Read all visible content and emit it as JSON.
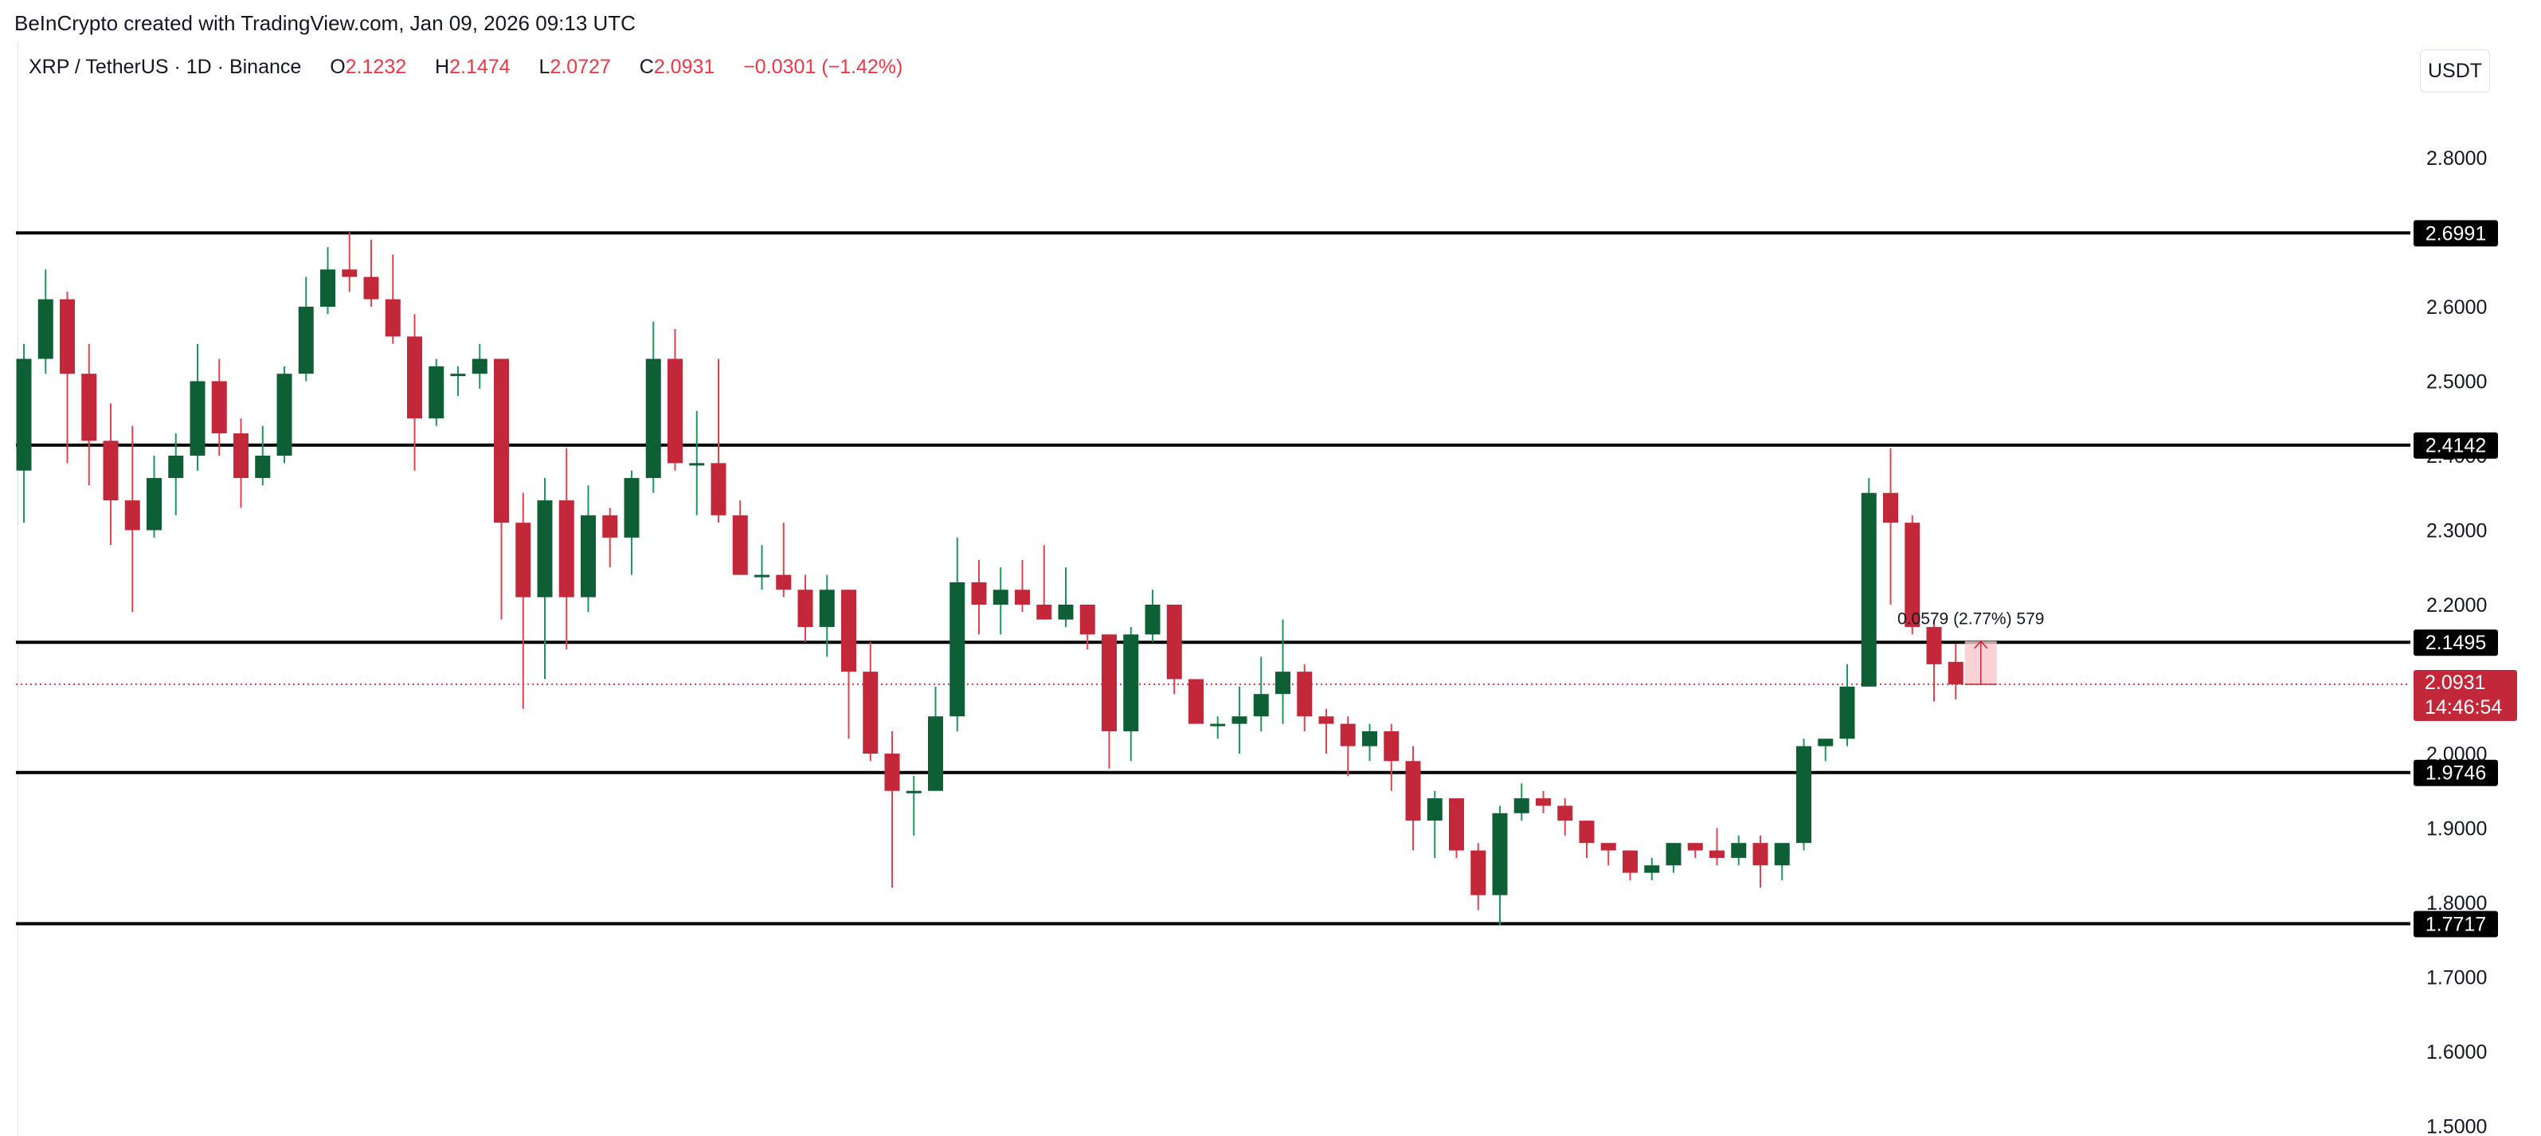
{
  "header": {
    "credit": "BeInCrypto created with TradingView.com, Jan 09, 2026 09:13 UTC"
  },
  "legend": {
    "symbol": "XRP / TetherUS · 1D · Binance",
    "open_label": "O",
    "open": "2.1232",
    "high_label": "H",
    "high": "2.1474",
    "low_label": "L",
    "low": "2.0727",
    "close_label": "C",
    "close": "2.0931",
    "change": "−0.0301 (−1.42%)"
  },
  "currency_button": "USDT",
  "colors": {
    "up": "#0f5f36",
    "down": "#c3283a",
    "level_line": "#000000",
    "price_line": "#e0434f",
    "measure_fill": "#f7c7cc"
  },
  "chart_data": {
    "type": "candlestick",
    "title": "",
    "xlabel": "",
    "ylabel": "",
    "ylim": [
      1.5,
      2.87
    ],
    "y_ticks": [
      "2.8000",
      "2.7000",
      "2.6000",
      "2.5000",
      "2.4000",
      "2.3000",
      "2.2000",
      "2.1000",
      "2.0000",
      "1.9000",
      "1.8000",
      "1.7000",
      "1.6000",
      "1.5000"
    ],
    "y_tick_values": [
      2.8,
      2.7,
      2.6,
      2.5,
      2.4,
      2.3,
      2.2,
      2.1,
      2.0,
      1.9,
      1.8,
      1.7,
      1.6,
      1.5
    ],
    "grid": false,
    "levels": [
      {
        "value": 2.6991,
        "label": "2.6991"
      },
      {
        "value": 2.4142,
        "label": "2.4142"
      },
      {
        "value": 2.1495,
        "label": "2.1495"
      },
      {
        "value": 1.9746,
        "label": "1.9746"
      },
      {
        "value": 1.7717,
        "label": "1.7717"
      }
    ],
    "last_price": {
      "value": 2.0931,
      "label": "2.0931",
      "countdown": "14:46:54"
    },
    "measure_label": "0.0579 (2.77%) 579",
    "candles": [
      {
        "o": 2.38,
        "h": 2.55,
        "l": 2.31,
        "c": 2.53
      },
      {
        "o": 2.53,
        "h": 2.65,
        "l": 2.51,
        "c": 2.61
      },
      {
        "o": 2.61,
        "h": 2.62,
        "l": 2.39,
        "c": 2.51
      },
      {
        "o": 2.51,
        "h": 2.55,
        "l": 2.36,
        "c": 2.42
      },
      {
        "o": 2.42,
        "h": 2.47,
        "l": 2.28,
        "c": 2.34
      },
      {
        "o": 2.34,
        "h": 2.44,
        "l": 2.19,
        "c": 2.3
      },
      {
        "o": 2.3,
        "h": 2.4,
        "l": 2.29,
        "c": 2.37
      },
      {
        "o": 2.37,
        "h": 2.43,
        "l": 2.32,
        "c": 2.4
      },
      {
        "o": 2.4,
        "h": 2.55,
        "l": 2.38,
        "c": 2.5
      },
      {
        "o": 2.5,
        "h": 2.53,
        "l": 2.4,
        "c": 2.43
      },
      {
        "o": 2.43,
        "h": 2.45,
        "l": 2.33,
        "c": 2.37
      },
      {
        "o": 2.37,
        "h": 2.44,
        "l": 2.36,
        "c": 2.4
      },
      {
        "o": 2.4,
        "h": 2.52,
        "l": 2.39,
        "c": 2.51
      },
      {
        "o": 2.51,
        "h": 2.64,
        "l": 2.5,
        "c": 2.6
      },
      {
        "o": 2.6,
        "h": 2.68,
        "l": 2.59,
        "c": 2.65
      },
      {
        "o": 2.65,
        "h": 2.7,
        "l": 2.62,
        "c": 2.64
      },
      {
        "o": 2.64,
        "h": 2.69,
        "l": 2.6,
        "c": 2.61
      },
      {
        "o": 2.61,
        "h": 2.67,
        "l": 2.55,
        "c": 2.56
      },
      {
        "o": 2.56,
        "h": 2.59,
        "l": 2.38,
        "c": 2.45
      },
      {
        "o": 2.45,
        "h": 2.53,
        "l": 2.44,
        "c": 2.52
      },
      {
        "o": 2.51,
        "h": 2.52,
        "l": 2.48,
        "c": 2.51
      },
      {
        "o": 2.51,
        "h": 2.55,
        "l": 2.49,
        "c": 2.53
      },
      {
        "o": 2.53,
        "h": 2.53,
        "l": 2.18,
        "c": 2.31
      },
      {
        "o": 2.31,
        "h": 2.35,
        "l": 2.06,
        "c": 2.21
      },
      {
        "o": 2.21,
        "h": 2.37,
        "l": 2.1,
        "c": 2.34
      },
      {
        "o": 2.34,
        "h": 2.41,
        "l": 2.14,
        "c": 2.21
      },
      {
        "o": 2.21,
        "h": 2.36,
        "l": 2.19,
        "c": 2.32
      },
      {
        "o": 2.32,
        "h": 2.33,
        "l": 2.25,
        "c": 2.29
      },
      {
        "o": 2.29,
        "h": 2.38,
        "l": 2.24,
        "c": 2.37
      },
      {
        "o": 2.37,
        "h": 2.58,
        "l": 2.35,
        "c": 2.53
      },
      {
        "o": 2.53,
        "h": 2.57,
        "l": 2.38,
        "c": 2.39
      },
      {
        "o": 2.39,
        "h": 2.46,
        "l": 2.32,
        "c": 2.39
      },
      {
        "o": 2.39,
        "h": 2.53,
        "l": 2.31,
        "c": 2.32
      },
      {
        "o": 2.32,
        "h": 2.34,
        "l": 2.24,
        "c": 2.24
      },
      {
        "o": 2.24,
        "h": 2.28,
        "l": 2.22,
        "c": 2.24
      },
      {
        "o": 2.24,
        "h": 2.31,
        "l": 2.21,
        "c": 2.22
      },
      {
        "o": 2.22,
        "h": 2.24,
        "l": 2.15,
        "c": 2.17
      },
      {
        "o": 2.17,
        "h": 2.24,
        "l": 2.13,
        "c": 2.22
      },
      {
        "o": 2.22,
        "h": 2.22,
        "l": 2.02,
        "c": 2.11
      },
      {
        "o": 2.11,
        "h": 2.15,
        "l": 1.99,
        "c": 2.0
      },
      {
        "o": 2.0,
        "h": 2.03,
        "l": 1.82,
        "c": 1.95
      },
      {
        "o": 1.95,
        "h": 1.97,
        "l": 1.89,
        "c": 1.95
      },
      {
        "o": 1.95,
        "h": 2.09,
        "l": 1.95,
        "c": 2.05
      },
      {
        "o": 2.05,
        "h": 2.29,
        "l": 2.03,
        "c": 2.23
      },
      {
        "o": 2.23,
        "h": 2.26,
        "l": 2.16,
        "c": 2.2
      },
      {
        "o": 2.2,
        "h": 2.25,
        "l": 2.16,
        "c": 2.22
      },
      {
        "o": 2.22,
        "h": 2.26,
        "l": 2.19,
        "c": 2.2
      },
      {
        "o": 2.2,
        "h": 2.28,
        "l": 2.18,
        "c": 2.18
      },
      {
        "o": 2.18,
        "h": 2.25,
        "l": 2.17,
        "c": 2.2
      },
      {
        "o": 2.2,
        "h": 2.2,
        "l": 2.14,
        "c": 2.16
      },
      {
        "o": 2.16,
        "h": 2.16,
        "l": 1.98,
        "c": 2.03
      },
      {
        "o": 2.03,
        "h": 2.17,
        "l": 1.99,
        "c": 2.16
      },
      {
        "o": 2.16,
        "h": 2.22,
        "l": 2.15,
        "c": 2.2
      },
      {
        "o": 2.2,
        "h": 2.2,
        "l": 2.08,
        "c": 2.1
      },
      {
        "o": 2.1,
        "h": 2.1,
        "l": 2.04,
        "c": 2.04
      },
      {
        "o": 2.04,
        "h": 2.05,
        "l": 2.02,
        "c": 2.04
      },
      {
        "o": 2.04,
        "h": 2.09,
        "l": 2.0,
        "c": 2.05
      },
      {
        "o": 2.05,
        "h": 2.13,
        "l": 2.03,
        "c": 2.08
      },
      {
        "o": 2.08,
        "h": 2.18,
        "l": 2.04,
        "c": 2.11
      },
      {
        "o": 2.11,
        "h": 2.12,
        "l": 2.03,
        "c": 2.05
      },
      {
        "o": 2.05,
        "h": 2.06,
        "l": 2.0,
        "c": 2.04
      },
      {
        "o": 2.04,
        "h": 2.05,
        "l": 1.97,
        "c": 2.01
      },
      {
        "o": 2.01,
        "h": 2.04,
        "l": 1.99,
        "c": 2.03
      },
      {
        "o": 2.03,
        "h": 2.04,
        "l": 1.95,
        "c": 1.99
      },
      {
        "o": 1.99,
        "h": 2.01,
        "l": 1.87,
        "c": 1.91
      },
      {
        "o": 1.91,
        "h": 1.95,
        "l": 1.86,
        "c": 1.94
      },
      {
        "o": 1.94,
        "h": 1.94,
        "l": 1.86,
        "c": 1.87
      },
      {
        "o": 1.87,
        "h": 1.88,
        "l": 1.79,
        "c": 1.81
      },
      {
        "o": 1.81,
        "h": 1.93,
        "l": 1.77,
        "c": 1.92
      },
      {
        "o": 1.92,
        "h": 1.96,
        "l": 1.91,
        "c": 1.94
      },
      {
        "o": 1.94,
        "h": 1.95,
        "l": 1.92,
        "c": 1.93
      },
      {
        "o": 1.93,
        "h": 1.94,
        "l": 1.89,
        "c": 1.91
      },
      {
        "o": 1.91,
        "h": 1.91,
        "l": 1.86,
        "c": 1.88
      },
      {
        "o": 1.88,
        "h": 1.88,
        "l": 1.85,
        "c": 1.87
      },
      {
        "o": 1.87,
        "h": 1.87,
        "l": 1.83,
        "c": 1.84
      },
      {
        "o": 1.84,
        "h": 1.86,
        "l": 1.83,
        "c": 1.85
      },
      {
        "o": 1.85,
        "h": 1.88,
        "l": 1.84,
        "c": 1.88
      },
      {
        "o": 1.88,
        "h": 1.88,
        "l": 1.86,
        "c": 1.87
      },
      {
        "o": 1.87,
        "h": 1.9,
        "l": 1.85,
        "c": 1.86
      },
      {
        "o": 1.86,
        "h": 1.89,
        "l": 1.85,
        "c": 1.88
      },
      {
        "o": 1.88,
        "h": 1.89,
        "l": 1.82,
        "c": 1.85
      },
      {
        "o": 1.85,
        "h": 1.88,
        "l": 1.83,
        "c": 1.88
      },
      {
        "o": 1.88,
        "h": 2.02,
        "l": 1.87,
        "c": 2.01
      },
      {
        "o": 2.01,
        "h": 2.02,
        "l": 1.99,
        "c": 2.02
      },
      {
        "o": 2.02,
        "h": 2.12,
        "l": 2.01,
        "c": 2.09
      },
      {
        "o": 2.09,
        "h": 2.37,
        "l": 2.09,
        "c": 2.35
      },
      {
        "o": 2.35,
        "h": 2.41,
        "l": 2.2,
        "c": 2.31
      },
      {
        "o": 2.31,
        "h": 2.32,
        "l": 2.16,
        "c": 2.17
      },
      {
        "o": 2.17,
        "h": 2.18,
        "l": 2.07,
        "c": 2.12
      },
      {
        "o": 2.1232,
        "h": 2.1474,
        "l": 2.0727,
        "c": 2.0931
      }
    ]
  }
}
